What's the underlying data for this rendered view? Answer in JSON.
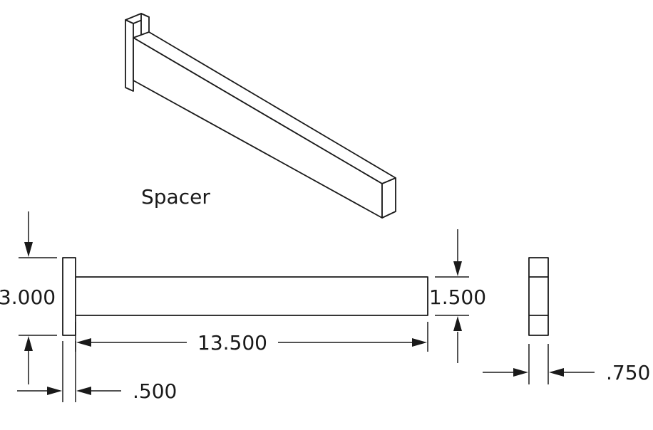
{
  "part_name": "Spacer",
  "dimensions": {
    "flange_height": "3.000",
    "bar_height": "1.500",
    "bar_length": "13.500",
    "flange_thickness": ".500",
    "bar_width": ".750"
  }
}
